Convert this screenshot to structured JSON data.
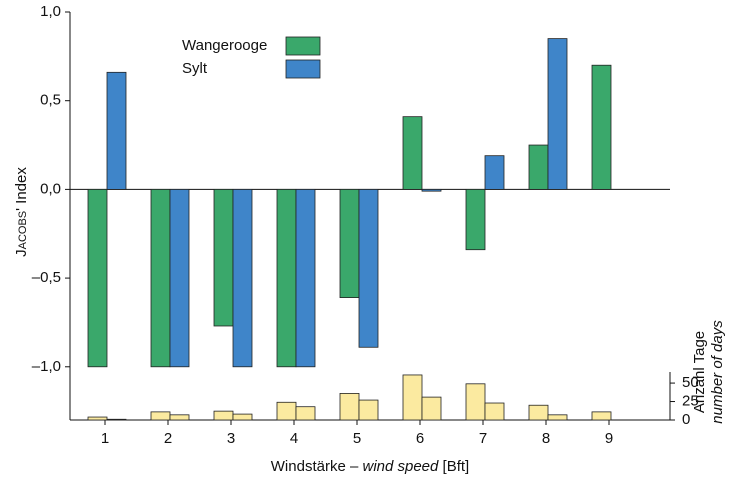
{
  "chart_data": [
    {
      "type": "bar",
      "ylabel": "Jacobs'",
      "ylabel_suffix": "Index",
      "xlabel": "Windstärke –",
      "xlabel_italic": "wind speed",
      "xlabel_unit": "[Bft]",
      "categories": [
        "1",
        "2",
        "3",
        "4",
        "5",
        "6",
        "7",
        "8",
        "9"
      ],
      "series": [
        {
          "name": "Wangerooge",
          "color": "#3aa86b",
          "values": [
            -1.0,
            -1.0,
            -0.77,
            -1.0,
            -0.61,
            0.41,
            -0.34,
            0.25,
            0.7
          ]
        },
        {
          "name": "Sylt",
          "color": "#3f85c9",
          "values": [
            0.66,
            -1.0,
            -1.0,
            -1.0,
            -0.89,
            -0.01,
            0.19,
            0.85,
            null
          ]
        }
      ],
      "ylim": [
        -1.3,
        1.0
      ],
      "yticks": [
        {
          "value": 1.0,
          "label": "1,0"
        },
        {
          "value": 0.5,
          "label": "0,5"
        },
        {
          "value": 0,
          "label": "0,0"
        },
        {
          "value": -0.5,
          "label": "–0,5"
        },
        {
          "value": -1.0,
          "label": "–1,0"
        }
      ]
    },
    {
      "type": "bar",
      "ylabel": "Anzahl Tage",
      "ylabel_italic": "number of days",
      "color": "#fbeaa0",
      "series": [
        {
          "values": [
            4,
            11,
            12,
            24,
            36,
            61,
            49,
            20,
            11
          ]
        },
        {
          "values": [
            1,
            7,
            8,
            18,
            27,
            31,
            23,
            7,
            null
          ]
        }
      ],
      "ylim": [
        0,
        65
      ],
      "yticks": [
        0,
        25,
        50
      ]
    }
  ]
}
